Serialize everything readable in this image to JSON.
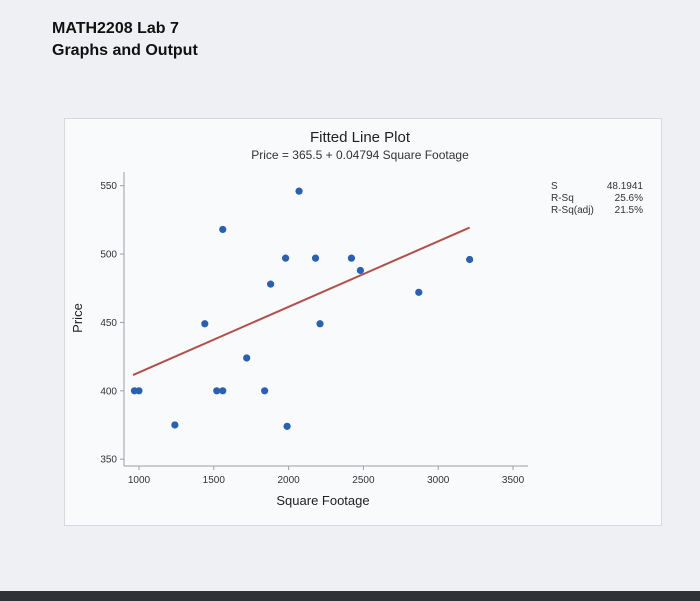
{
  "doc": {
    "line1": "MATH2208 Lab 7",
    "line2": "Graphs and Output"
  },
  "chart_data": {
    "type": "scatter",
    "title": "Fitted Line Plot",
    "subtitle": "Price = 365.5 + 0.04794 Square Footage",
    "xlabel": "Square Footage",
    "ylabel": "Price",
    "xlim": [
      900,
      3600
    ],
    "ylim": [
      345,
      560
    ],
    "xticks": [
      1000,
      1500,
      2000,
      2500,
      3000,
      3500
    ],
    "yticks": [
      350,
      400,
      450,
      500,
      550
    ],
    "grid": false,
    "points": [
      {
        "x": 970,
        "y": 400
      },
      {
        "x": 1000,
        "y": 400
      },
      {
        "x": 1240,
        "y": 375
      },
      {
        "x": 1440,
        "y": 449
      },
      {
        "x": 1520,
        "y": 400
      },
      {
        "x": 1560,
        "y": 400
      },
      {
        "x": 1560,
        "y": 518
      },
      {
        "x": 1720,
        "y": 424
      },
      {
        "x": 1840,
        "y": 400
      },
      {
        "x": 1880,
        "y": 478
      },
      {
        "x": 1980,
        "y": 497
      },
      {
        "x": 1990,
        "y": 374
      },
      {
        "x": 2070,
        "y": 546
      },
      {
        "x": 2180,
        "y": 497
      },
      {
        "x": 2210,
        "y": 449
      },
      {
        "x": 2420,
        "y": 497
      },
      {
        "x": 2480,
        "y": 488
      },
      {
        "x": 2870,
        "y": 472
      },
      {
        "x": 3210,
        "y": 496
      }
    ],
    "fit_line": {
      "intercept": 365.5,
      "slope": 0.04794,
      "x_range": [
        960,
        3210
      ],
      "color": "#b0504a"
    },
    "point_color": "#2b5fb0",
    "stats": [
      {
        "label": "S",
        "value": "48.1941"
      },
      {
        "label": "R-Sq",
        "value": "25.6%"
      },
      {
        "label": "R-Sq(adj)",
        "value": "21.5%"
      }
    ]
  }
}
